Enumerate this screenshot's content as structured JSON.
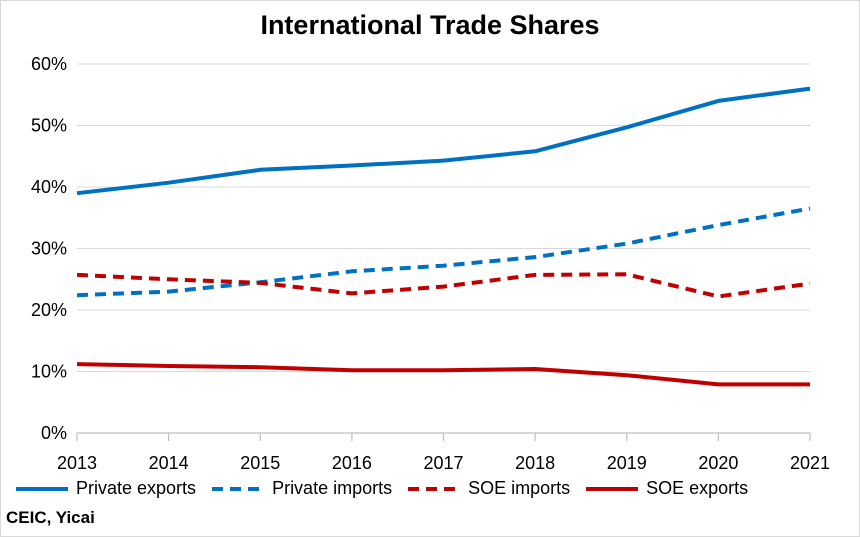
{
  "title": "International Trade Shares",
  "source": "CEIC, Yicai",
  "chart_data": {
    "type": "line",
    "title": "International Trade Shares",
    "xlabel": "",
    "ylabel": "",
    "x": [
      2013,
      2014,
      2015,
      2016,
      2017,
      2018,
      2019,
      2020,
      2021
    ],
    "y_ticks": [
      "0%",
      "10%",
      "20%",
      "30%",
      "40%",
      "50%",
      "60%"
    ],
    "ylim": [
      0,
      60
    ],
    "grid": "horizontal",
    "legend_position": "bottom",
    "series": [
      {
        "name": "Private exports",
        "color": "#0070C0",
        "dash": "solid",
        "values": [
          39.0,
          40.7,
          42.8,
          43.5,
          44.3,
          45.8,
          49.7,
          54.0,
          56.0
        ]
      },
      {
        "name": "Private imports",
        "color": "#0070C0",
        "dash": "dashed",
        "values": [
          22.4,
          23.0,
          24.5,
          26.3,
          27.2,
          28.6,
          30.8,
          33.8,
          36.5
        ]
      },
      {
        "name": "SOE imports",
        "color": "#C00000",
        "dash": "dashed",
        "values": [
          25.7,
          25.0,
          24.4,
          22.7,
          23.8,
          25.7,
          25.8,
          22.2,
          24.3
        ]
      },
      {
        "name": "SOE exports",
        "color": "#C00000",
        "dash": "solid",
        "values": [
          11.2,
          10.9,
          10.7,
          10.2,
          10.2,
          10.4,
          9.4,
          7.9,
          7.9
        ]
      }
    ]
  }
}
